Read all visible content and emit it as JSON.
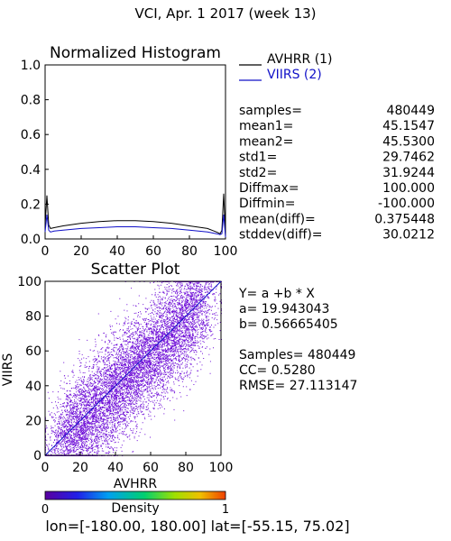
{
  "page_title": "VCI,  Apr. 1 2017 (week 13)",
  "histogram_title": "Normalized Histogram",
  "legend": [
    {
      "label": "AVHRR (1)",
      "color": "#000000"
    },
    {
      "label": "VIIRS (2)",
      "color": "#1010c8"
    }
  ],
  "stats": [
    {
      "label": "samples=",
      "value": "480449"
    },
    {
      "label": "mean1=",
      "value": "45.1547"
    },
    {
      "label": "mean2=",
      "value": "45.5300"
    },
    {
      "label": "std1=",
      "value": "29.7462"
    },
    {
      "label": "std2=",
      "value": "31.9244"
    },
    {
      "label": "Diffmax=",
      "value": "100.000"
    },
    {
      "label": "Diffmin=",
      "value": "-100.000"
    },
    {
      "label": "mean(diff)=",
      "value": "0.375448"
    },
    {
      "label": "stddev(diff)=",
      "value": "30.0212"
    }
  ],
  "scatter_title": "Scatter Plot",
  "regression": [
    "Y= a +b * X",
    "a= 19.943043",
    "b= 0.56665405",
    "Samples= 480449",
    "CC=  0.5280",
    "RMSE= 27.113147"
  ],
  "colorbar": {
    "label": "Density",
    "min_label": "0",
    "max_label": "1"
  },
  "footer": "lon=[-180.00, 180.00] lat=[-55.15, 75.02]",
  "chart_data": [
    {
      "type": "line",
      "title": "Normalized Histogram",
      "xlim": [
        0,
        100
      ],
      "ylim": [
        0.0,
        1.0
      ],
      "xticks": [
        0,
        20,
        40,
        60,
        80,
        100
      ],
      "yticks": [
        0.0,
        0.2,
        0.4,
        0.6,
        0.8,
        1.0
      ],
      "x": [
        0,
        1,
        2,
        3,
        5,
        10,
        20,
        30,
        40,
        50,
        60,
        70,
        80,
        90,
        95,
        97,
        98,
        99,
        100
      ],
      "series": [
        {
          "name": "AVHRR (1)",
          "color": "#000000",
          "values": [
            0.08,
            0.25,
            0.08,
            0.06,
            0.065,
            0.075,
            0.09,
            0.1,
            0.105,
            0.105,
            0.1,
            0.09,
            0.075,
            0.06,
            0.04,
            0.03,
            0.05,
            0.26,
            0.02
          ]
        },
        {
          "name": "VIIRS (2)",
          "color": "#1010c8",
          "values": [
            0.04,
            0.14,
            0.05,
            0.04,
            0.045,
            0.05,
            0.06,
            0.065,
            0.07,
            0.07,
            0.065,
            0.06,
            0.05,
            0.04,
            0.03,
            0.025,
            0.03,
            0.14,
            0.01
          ]
        }
      ]
    },
    {
      "type": "scatter",
      "title": "Scatter Plot",
      "xlabel": "AVHRR",
      "ylabel": "VIIRS",
      "xlim": [
        0,
        100
      ],
      "ylim": [
        0,
        100
      ],
      "xticks": [
        0,
        20,
        40,
        60,
        80,
        100
      ],
      "yticks": [
        0,
        20,
        40,
        60,
        80,
        100
      ],
      "fit": {
        "a": 19.943043,
        "b": 0.56665405
      },
      "point_color": "#7010d8",
      "samples": 480449
    }
  ]
}
